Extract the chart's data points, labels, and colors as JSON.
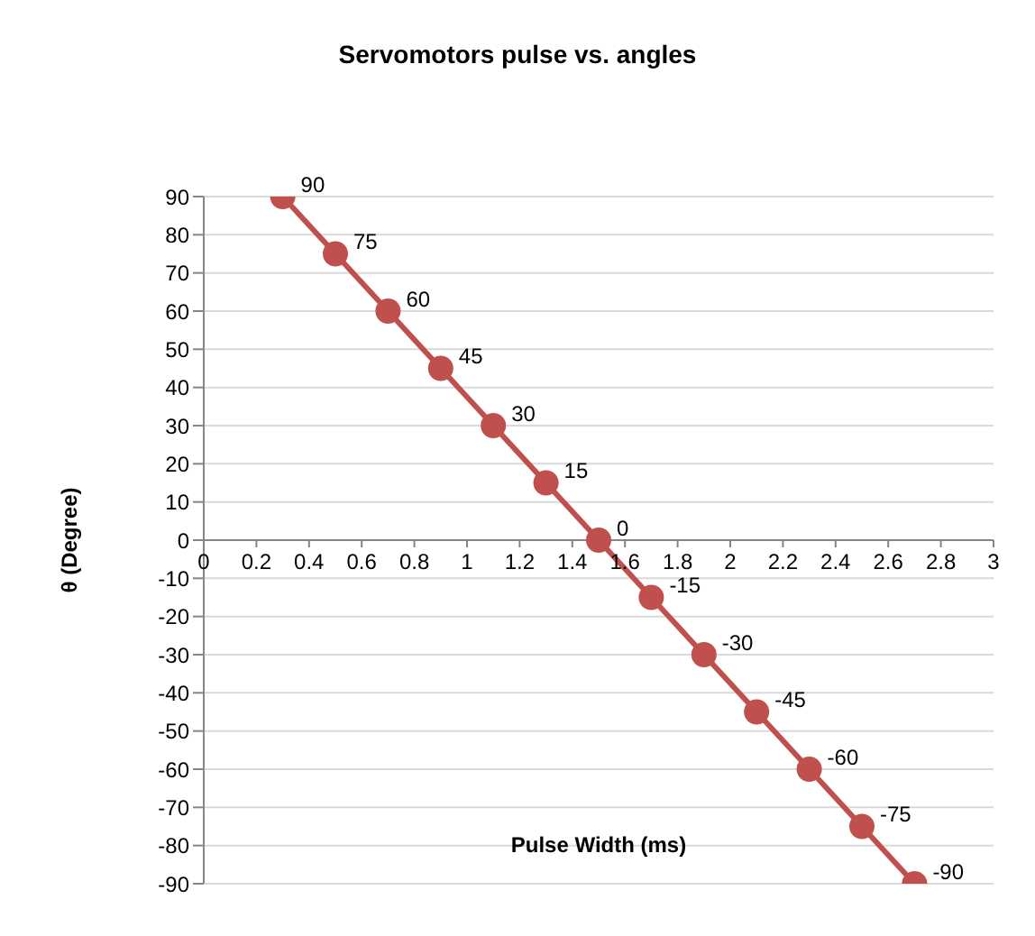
{
  "chart_data": {
    "type": "line",
    "title": "Servomotors pulse vs. angles",
    "xlabel": "Pulse Width (ms)",
    "ylabel": "θ (Degree)",
    "x": [
      0.3,
      0.5,
      0.7,
      0.9,
      1.1,
      1.3,
      1.5,
      1.7,
      1.9,
      2.1,
      2.3,
      2.5,
      2.7
    ],
    "series": [
      {
        "color": "#c0504d",
        "values": [
          90,
          75,
          60,
          45,
          30,
          15,
          0,
          -15,
          -30,
          -45,
          -60,
          -75,
          -90
        ]
      }
    ],
    "xlim": [
      0,
      3
    ],
    "xticks": [
      0,
      0.2,
      0.4,
      0.6,
      0.8,
      1,
      1.2,
      1.4,
      1.6,
      1.8,
      2,
      2.2,
      2.4,
      2.6,
      2.8,
      3
    ],
    "ylim": [
      -90,
      90
    ],
    "yticks": [
      -90,
      -80,
      -70,
      -60,
      -50,
      -40,
      -30,
      -20,
      -10,
      0,
      10,
      20,
      30,
      40,
      50,
      60,
      70,
      80,
      90
    ],
    "grid": "y",
    "marker": "circle",
    "line_style": "solid",
    "data_labels": true
  }
}
